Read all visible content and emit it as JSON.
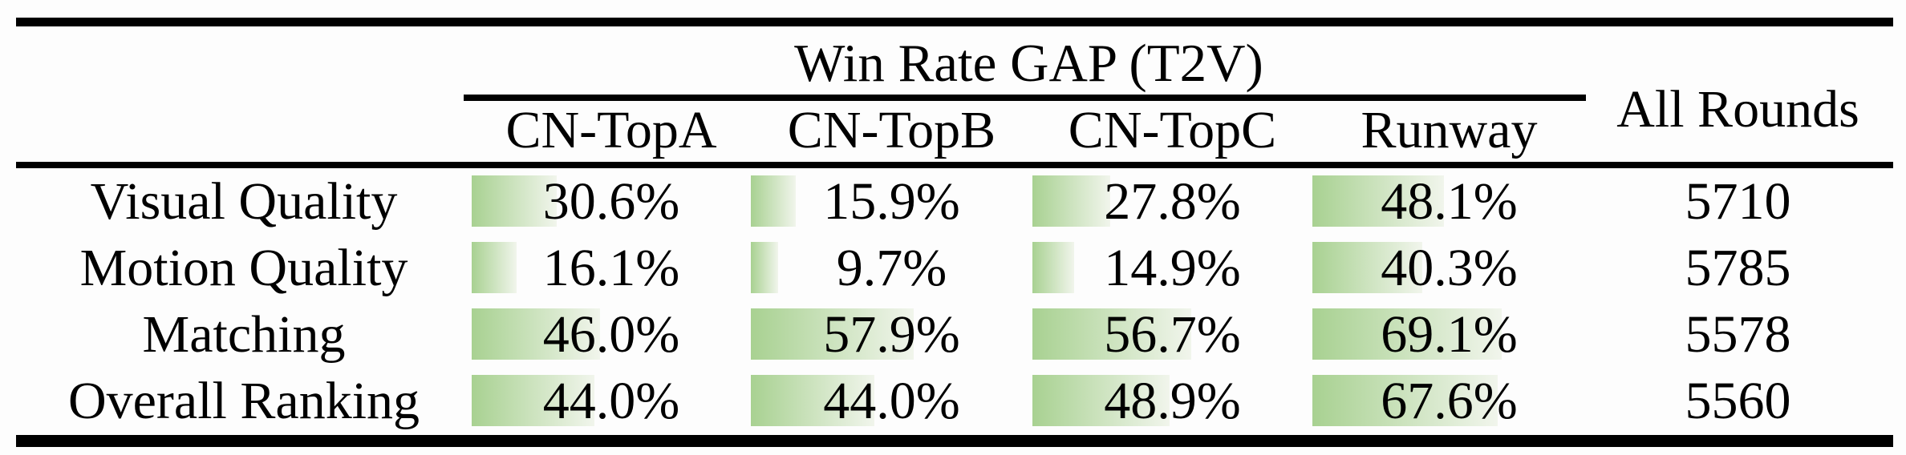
{
  "chart_data": {
    "type": "table",
    "group_header": "Win Rate GAP (T2V)",
    "extra_column": "All Rounds",
    "columns": [
      "CN-TopA",
      "CN-TopB",
      "CN-TopC",
      "Runway"
    ],
    "rows": [
      {
        "label": "Visual Quality",
        "values": [
          30.6,
          15.9,
          27.8,
          48.1
        ],
        "display": [
          "30.6%",
          "15.9%",
          "27.8%",
          "48.1%"
        ],
        "all_rounds": "5710"
      },
      {
        "label": "Motion Quality",
        "values": [
          16.1,
          9.7,
          14.9,
          40.3
        ],
        "display": [
          "16.1%",
          "9.7%",
          "14.9%",
          "40.3%"
        ],
        "all_rounds": "5785"
      },
      {
        "label": "Matching",
        "values": [
          46.0,
          57.9,
          56.7,
          69.1
        ],
        "display": [
          "46.0%",
          "57.9%",
          "56.7%",
          "69.1%"
        ],
        "all_rounds": "5578"
      },
      {
        "label": "Overall Ranking",
        "values": [
          44.0,
          44.0,
          48.9,
          67.6
        ],
        "display": [
          "44.0%",
          "44.0%",
          "48.9%",
          "67.6%"
        ],
        "all_rounds": "5560"
      }
    ],
    "bar_colors": {
      "start": "#a8d191",
      "end": "#f1f5ec"
    },
    "text_color": "#000000",
    "rule_color": "#000000",
    "layout_hints": {
      "bar_scale": "bar width = value percent of column width",
      "value_range": [
        0,
        100
      ]
    }
  }
}
